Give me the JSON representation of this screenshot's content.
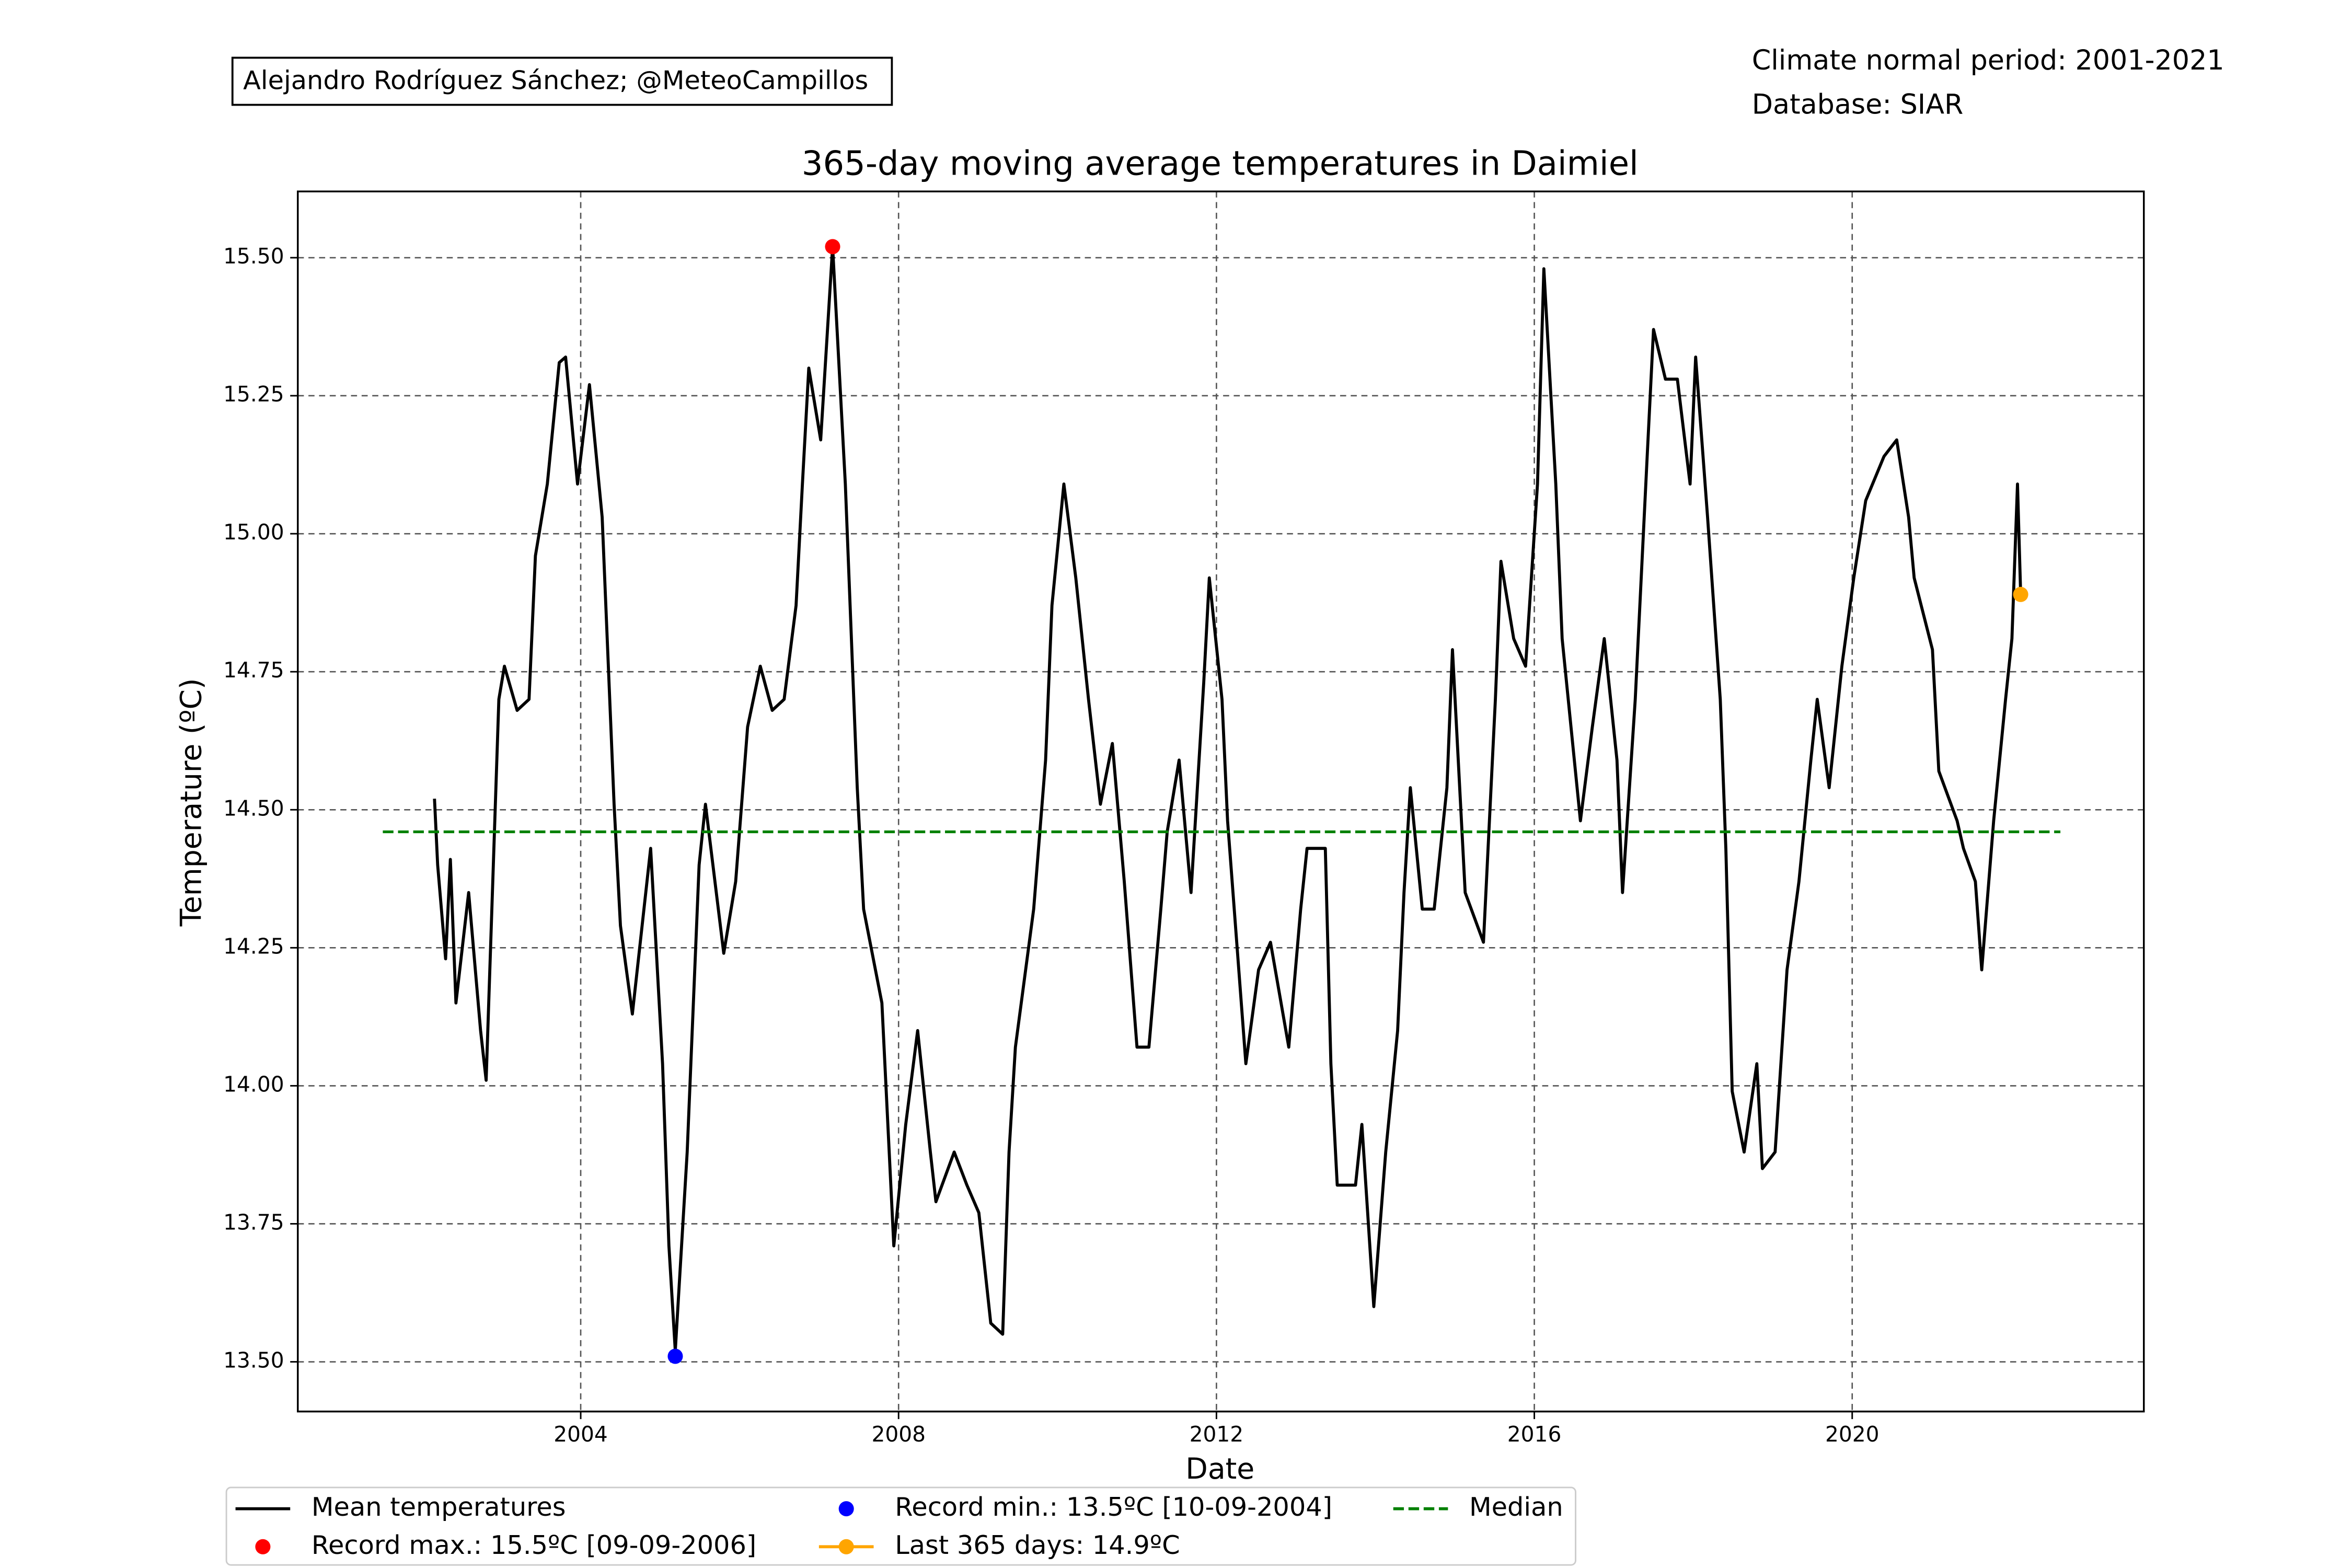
{
  "chart_data": {
    "type": "line",
    "title": "365-day moving average temperatures in Daimiel",
    "xlabel": "Date",
    "ylabel": "Temperature (ºC)",
    "annotations": {
      "credit": "Alejandro Rodríguez Sánchez; @MeteoCampillos",
      "climate_period": "Climate normal period: 2001-2021",
      "database": "Database: SIAR"
    },
    "xlim": [
      2000.44,
      2023.67
    ],
    "xticks": [
      2004,
      2008,
      2012,
      2016,
      2020
    ],
    "ylim": [
      13.41,
      15.62
    ],
    "yticks": [
      {
        "value": 13.5,
        "label": "13.50"
      },
      13.75,
      {
        "value": 14,
        "label": "14.00"
      },
      14.25,
      {
        "value": 14.5,
        "label": "14.50"
      },
      14.75,
      {
        "value": 15,
        "label": "15.00"
      },
      15.25,
      {
        "value": 15.5,
        "label": "15.50"
      }
    ],
    "grid": true,
    "legend": "below",
    "series": [
      {
        "name": "Mean temperatures",
        "type": "line",
        "color": "#000000",
        "x": [
          2002.16,
          2002.2,
          2002.3,
          2002.36,
          2002.43,
          2002.59,
          2002.74,
          2002.81,
          2002.97,
          2003.04,
          2003.2,
          2003.35,
          2003.43,
          2003.58,
          2003.73,
          2003.81,
          2003.96,
          2004.11,
          2004.27,
          2004.42,
          2004.5,
          2004.65,
          2004.88,
          2005.03,
          2005.11,
          2005.19,
          2005.34,
          2005.49,
          2005.57,
          2005.8,
          2005.95,
          2006.1,
          2006.26,
          2006.41,
          2006.56,
          2006.71,
          2006.79,
          2006.87,
          2007.02,
          2007.17,
          2007.33,
          2007.48,
          2007.56,
          2007.79,
          2007.94,
          2008.09,
          2008.24,
          2008.4,
          2008.47,
          2008.7,
          2008.86,
          2009.01,
          2009.16,
          2009.31,
          2009.39,
          2009.47,
          2009.7,
          2009.85,
          2009.93,
          2010.08,
          2010.23,
          2010.39,
          2010.54,
          2010.69,
          2010.84,
          2011.0,
          2011.15,
          2011.3,
          2011.38,
          2011.53,
          2011.68,
          2011.84,
          2011.91,
          2012.07,
          2012.14,
          2012.37,
          2012.53,
          2012.68,
          2012.91,
          2013.06,
          2013.14,
          2013.37,
          2013.44,
          2013.52,
          2013.75,
          2013.83,
          2013.98,
          2014.13,
          2014.28,
          2014.36,
          2014.44,
          2014.59,
          2014.74,
          2014.9,
          2014.97,
          2015.13,
          2015.36,
          2015.51,
          2015.58,
          2015.74,
          2015.89,
          2016.04,
          2016.12,
          2016.27,
          2016.35,
          2016.58,
          2016.73,
          2016.88,
          2017.04,
          2017.11,
          2017.27,
          2017.42,
          2017.5,
          2017.65,
          2017.8,
          2017.96,
          2018.03,
          2018.18,
          2018.34,
          2018.41,
          2018.49,
          2018.64,
          2018.8,
          2018.87,
          2019.03,
          2019.18,
          2019.33,
          2019.48,
          2019.56,
          2019.71,
          2019.87,
          2020.02,
          2020.17,
          2020.4,
          2020.56,
          2020.71,
          2020.78,
          2021.01,
          2021.09,
          2021.32,
          2021.4,
          2021.55,
          2021.63,
          2021.78,
          2021.93,
          2022.01,
          2022.08,
          2022.12
        ],
        "values": [
          14.52,
          14.4,
          14.23,
          14.41,
          14.15,
          14.35,
          14.1,
          14.01,
          14.7,
          14.76,
          14.68,
          14.7,
          14.96,
          15.09,
          15.31,
          15.32,
          15.09,
          15.27,
          15.03,
          14.51,
          14.29,
          14.13,
          14.43,
          14.04,
          13.71,
          13.52,
          13.88,
          14.4,
          14.51,
          14.24,
          14.37,
          14.65,
          14.76,
          14.68,
          14.7,
          14.87,
          15.09,
          15.3,
          15.17,
          15.52,
          15.09,
          14.54,
          14.32,
          14.15,
          13.71,
          13.93,
          14.1,
          13.88,
          13.79,
          13.88,
          13.82,
          13.77,
          13.57,
          13.55,
          13.88,
          14.07,
          14.32,
          14.59,
          14.87,
          15.09,
          14.92,
          14.7,
          14.51,
          14.62,
          14.37,
          14.07,
          14.07,
          14.32,
          14.46,
          14.59,
          14.35,
          14.73,
          14.92,
          14.7,
          14.48,
          14.04,
          14.21,
          14.26,
          14.07,
          14.32,
          14.43,
          14.43,
          14.04,
          13.82,
          13.82,
          13.93,
          13.6,
          13.88,
          14.1,
          14.35,
          14.54,
          14.32,
          14.32,
          14.54,
          14.79,
          14.35,
          14.26,
          14.7,
          14.95,
          14.81,
          14.76,
          15.09,
          15.48,
          15.09,
          14.81,
          14.48,
          14.65,
          14.81,
          14.59,
          14.35,
          14.7,
          15.14,
          15.37,
          15.28,
          15.28,
          15.09,
          15.32,
          15.03,
          14.7,
          14.43,
          13.99,
          13.88,
          14.04,
          13.85,
          13.88,
          14.21,
          14.37,
          14.59,
          14.7,
          14.54,
          14.76,
          14.92,
          15.06,
          15.14,
          15.17,
          15.03,
          14.92,
          14.79,
          14.57,
          14.48,
          14.43,
          14.37,
          14.21,
          14.48,
          14.7,
          14.81,
          15.09,
          14.89
        ]
      },
      {
        "name": "Record max.: 15.5ºC [09-09-2006]",
        "type": "scatter",
        "color": "#ff0000",
        "x": [
          2007.17
        ],
        "values": [
          15.52
        ]
      },
      {
        "name": "Record min.: 13.5ºC [10-09-2004]",
        "type": "scatter",
        "color": "#0000ff",
        "x": [
          2005.19
        ],
        "values": [
          13.51
        ]
      },
      {
        "name": "Last 365 days: 14.9ºC",
        "type": "line",
        "marker": true,
        "color": "#ffa500",
        "x": [
          2022.12
        ],
        "values": [
          14.89
        ]
      },
      {
        "name": "Median",
        "type": "line",
        "dashed": true,
        "color": "#008000",
        "x": [
          2001.51,
          2022.62
        ],
        "values": [
          14.46,
          14.46
        ]
      }
    ]
  }
}
